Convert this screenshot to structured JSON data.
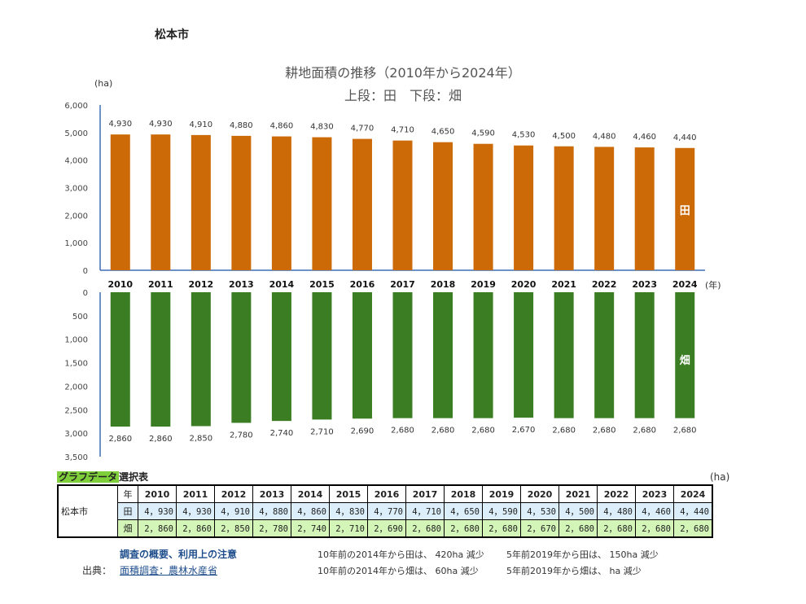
{
  "city": "松本市",
  "title": "耕地面積の推移（2010年から2024年）",
  "subtitle": "上段：田　下段：畑",
  "chart_data": {
    "type": "bar",
    "categories": [
      "2010",
      "2011",
      "2012",
      "2013",
      "2014",
      "2015",
      "2016",
      "2017",
      "2018",
      "2019",
      "2020",
      "2021",
      "2022",
      "2023",
      "2024"
    ],
    "series": [
      {
        "name": "田",
        "color": "#cc6a08",
        "values": [
          4930,
          4930,
          4910,
          4880,
          4860,
          4830,
          4770,
          4710,
          4650,
          4590,
          4530,
          4500,
          4480,
          4460,
          4440
        ],
        "labels": [
          "4,930",
          "4,930",
          "4,910",
          "4,880",
          "4,860",
          "4,830",
          "4,770",
          "4,710",
          "4,650",
          "4,590",
          "4,530",
          "4,500",
          "4,480",
          "4,460",
          "4,440"
        ]
      },
      {
        "name": "畑",
        "color": "#3a7d22",
        "values": [
          2860,
          2860,
          2850,
          2780,
          2740,
          2710,
          2690,
          2680,
          2680,
          2680,
          2670,
          2680,
          2680,
          2680,
          2680
        ],
        "labels": [
          "2,860",
          "2,860",
          "2,850",
          "2,780",
          "2,740",
          "2,710",
          "2,690",
          "2,680",
          "2,680",
          "2,680",
          "2,670",
          "2,680",
          "2,680",
          "2,680",
          "2,680"
        ]
      }
    ],
    "upper_axis": {
      "range": [
        0,
        6000
      ],
      "ticks": [
        "0",
        "1,000",
        "2,000",
        "3,000",
        "4,000",
        "5,000",
        "6,000"
      ]
    },
    "lower_axis": {
      "range": [
        0,
        3500
      ],
      "ticks": [
        "0",
        "500",
        "1,000",
        "1,500",
        "2,000",
        "2,500",
        "3,000",
        "3,500"
      ]
    },
    "y_unit": "(ha)",
    "x_unit": "(年)"
  },
  "table": {
    "heading_highlight": "グラフデータ",
    "heading_rest": "選択表",
    "unit": "(ha)",
    "city_label": "松本市",
    "year_label": "年",
    "years": [
      "2010",
      "2011",
      "2012",
      "2013",
      "2014",
      "2015",
      "2016",
      "2017",
      "2018",
      "2019",
      "2020",
      "2021",
      "2022",
      "2023",
      "2024"
    ],
    "rows": [
      {
        "label": "田",
        "values": [
          "4，930",
          "4，930",
          "4，910",
          "4，880",
          "4，860",
          "4，830",
          "4，770",
          "4，710",
          "4，650",
          "4，590",
          "4，530",
          "4，500",
          "4，480",
          "4，460",
          "4，440"
        ]
      },
      {
        "label": "畑",
        "values": [
          "2，860",
          "2，860",
          "2，850",
          "2，780",
          "2，740",
          "2，710",
          "2，690",
          "2，680",
          "2，680",
          "2，680",
          "2，670",
          "2，680",
          "2，680",
          "2，680",
          "2，680"
        ]
      }
    ]
  },
  "footer": {
    "survey_link": "調査の概要、利用上の注意",
    "source_label": "出典：",
    "source_link": "面積調査：農林水産省",
    "note1": "10年前の2014年から田は、 420ha 減少",
    "note2": "10年前の2014年から畑は、  60ha 減少",
    "note3": "5年前2019年から田は、     150ha 減少",
    "note4": "5年前2019年から畑は、          ha 減少"
  }
}
